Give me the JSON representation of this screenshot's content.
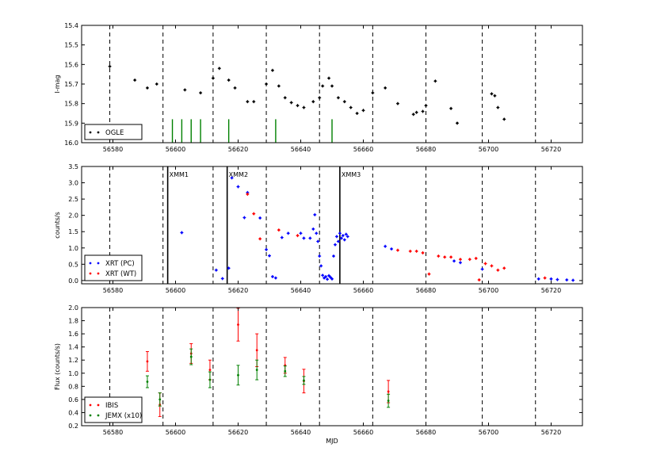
{
  "chart_data": [
    {
      "type": "scatter",
      "id": "ogle",
      "ylabel": "I-mag",
      "xlim": [
        56570,
        56730
      ],
      "ylim": [
        15.4,
        16.0
      ],
      "y_inverted": true,
      "yticks": [
        15.4,
        15.5,
        15.6,
        15.7,
        15.8,
        15.9,
        16.0
      ],
      "ytick_labels": [
        "15.4",
        "15.5",
        "15.6",
        "15.7",
        "15.8",
        "15.9",
        "16.0"
      ],
      "xticks": [
        56580,
        56600,
        56620,
        56640,
        56660,
        56680,
        56700,
        56720
      ],
      "xtick_labels": [
        "56580",
        "56600",
        "56620",
        "56640",
        "56660",
        "56680",
        "56700",
        "56720"
      ],
      "dashed_lines_x": [
        56579,
        56596,
        56612,
        56629,
        56646,
        56663,
        56680,
        56698,
        56715
      ],
      "legend": {
        "position": "lower-left",
        "entries": [
          {
            "label": "OGLE",
            "color": "#000000"
          }
        ]
      },
      "green_bars": {
        "color": "#008000",
        "y_from": 15.88,
        "x": [
          56599,
          56602,
          56605,
          56608,
          56617,
          56632,
          56650
        ]
      },
      "series": [
        {
          "name": "OGLE",
          "color": "#000000",
          "points": [
            [
              56579,
              15.61
            ],
            [
              56587,
              15.68
            ],
            [
              56591,
              15.72
            ],
            [
              56594,
              15.7
            ],
            [
              56603,
              15.73
            ],
            [
              56608,
              15.745
            ],
            [
              56612,
              15.67
            ],
            [
              56614,
              15.62
            ],
            [
              56617,
              15.68
            ],
            [
              56619,
              15.72
            ],
            [
              56623,
              15.79
            ],
            [
              56625,
              15.79
            ],
            [
              56629,
              15.7
            ],
            [
              56631,
              15.63
            ],
            [
              56633,
              15.71
            ],
            [
              56635,
              15.77
            ],
            [
              56637,
              15.795
            ],
            [
              56639,
              15.81
            ],
            [
              56641,
              15.82
            ],
            [
              56644,
              15.79
            ],
            [
              56646,
              15.77
            ],
            [
              56647,
              15.71
            ],
            [
              56649,
              15.67
            ],
            [
              56650,
              15.71
            ],
            [
              56652,
              15.77
            ],
            [
              56654,
              15.79
            ],
            [
              56656,
              15.82
            ],
            [
              56658,
              15.85
            ],
            [
              56660,
              15.835
            ],
            [
              56663,
              15.745
            ],
            [
              56667,
              15.72
            ],
            [
              56671,
              15.8
            ],
            [
              56676,
              15.855
            ],
            [
              56677,
              15.845
            ],
            [
              56679,
              15.84
            ],
            [
              56680,
              15.81
            ],
            [
              56683,
              15.685
            ],
            [
              56688,
              15.825
            ],
            [
              56690,
              15.9
            ],
            [
              56701,
              15.75
            ],
            [
              56702,
              15.76
            ],
            [
              56703,
              15.82
            ],
            [
              56705,
              15.88
            ]
          ]
        }
      ]
    },
    {
      "type": "scatter",
      "id": "xrt",
      "ylabel": "counts/s",
      "xlim": [
        56570,
        56730
      ],
      "ylim": [
        -0.1,
        3.5
      ],
      "yticks": [
        0.0,
        0.5,
        1.0,
        1.5,
        2.0,
        2.5,
        3.0,
        3.5
      ],
      "ytick_labels": [
        "0.0",
        "0.5",
        "1.0",
        "1.5",
        "2.0",
        "2.5",
        "3.0",
        "3.5"
      ],
      "xticks": [
        56580,
        56600,
        56620,
        56640,
        56660,
        56680,
        56700,
        56720
      ],
      "xtick_labels": [
        "56580",
        "56600",
        "56620",
        "56640",
        "56660",
        "56680",
        "56700",
        "56720"
      ],
      "dashed_lines_x": [
        56579,
        56596,
        56612,
        56629,
        56646,
        56663,
        56680,
        56698,
        56715
      ],
      "solid_lines": [
        {
          "x": 56597.5,
          "label": "XMM1"
        },
        {
          "x": 56616.5,
          "label": "XMM2"
        },
        {
          "x": 56652.5,
          "label": "XMM3"
        }
      ],
      "legend": {
        "position": "lower-left",
        "entries": [
          {
            "label": "XRT (PC)",
            "color": "#0000ff"
          },
          {
            "label": "XRT (WT)",
            "color": "#ff0000"
          }
        ]
      },
      "series": [
        {
          "name": "XRT (PC)",
          "color": "#0000ff",
          "points": [
            [
              56602,
              1.47
            ],
            [
              56613,
              0.32
            ],
            [
              56615,
              0.06
            ],
            [
              56617,
              0.38
            ],
            [
              56618,
              3.15
            ],
            [
              56620,
              2.88
            ],
            [
              56622,
              1.93
            ],
            [
              56623,
              2.7
            ],
            [
              56627,
              1.92
            ],
            [
              56629,
              0.95
            ],
            [
              56630,
              0.76
            ],
            [
              56631,
              0.12
            ],
            [
              56632,
              0.08
            ],
            [
              56634,
              1.32
            ],
            [
              56636,
              1.45
            ],
            [
              56640,
              1.45
            ],
            [
              56641,
              1.3
            ],
            [
              56643,
              1.3
            ],
            [
              56644,
              1.58
            ],
            [
              56644.5,
              2.02
            ],
            [
              56645,
              1.45
            ],
            [
              56645.5,
              1.2
            ],
            [
              56646,
              0.75
            ],
            [
              56646.5,
              0.45
            ],
            [
              56647,
              0.16
            ],
            [
              56647.5,
              0.08
            ],
            [
              56648,
              0.12
            ],
            [
              56648.5,
              0.04
            ],
            [
              56649,
              0.15
            ],
            [
              56649.5,
              0.1
            ],
            [
              56650,
              0.05
            ],
            [
              56650.5,
              0.75
            ],
            [
              56651,
              1.1
            ],
            [
              56651.5,
              1.35
            ],
            [
              56652,
              1.2
            ],
            [
              56652.5,
              1.45
            ],
            [
              56653,
              1.3
            ],
            [
              56653.5,
              1.38
            ],
            [
              56654,
              1.25
            ],
            [
              56654.5,
              1.42
            ],
            [
              56655,
              1.35
            ],
            [
              56667,
              1.05
            ],
            [
              56669,
              0.97
            ],
            [
              56689,
              0.6
            ],
            [
              56691,
              0.55
            ],
            [
              56698,
              0.35
            ],
            [
              56716,
              0.05
            ],
            [
              56720,
              0.05
            ],
            [
              56722,
              0.03
            ],
            [
              56725,
              0.02
            ],
            [
              56727,
              0.01
            ]
          ]
        },
        {
          "name": "XRT (WT)",
          "color": "#ff0000",
          "points": [
            [
              56623,
              2.65
            ],
            [
              56625,
              2.05
            ],
            [
              56627,
              1.28
            ],
            [
              56633,
              1.55
            ],
            [
              56639,
              1.38
            ],
            [
              56671,
              0.93
            ],
            [
              56675,
              0.9
            ],
            [
              56677,
              0.9
            ],
            [
              56679,
              0.85
            ],
            [
              56681,
              0.2
            ],
            [
              56684,
              0.75
            ],
            [
              56686,
              0.72
            ],
            [
              56688,
              0.72
            ],
            [
              56691,
              0.65
            ],
            [
              56694,
              0.65
            ],
            [
              56696,
              0.68
            ],
            [
              56697,
              0.02
            ],
            [
              56699,
              0.52
            ],
            [
              56701,
              0.45
            ],
            [
              56703,
              0.32
            ],
            [
              56705,
              0.38
            ],
            [
              56718,
              0.08
            ]
          ]
        }
      ]
    },
    {
      "type": "scatter",
      "id": "integral",
      "xlabel": "MJD",
      "ylabel": "Flux (counts/s)",
      "xlim": [
        56570,
        56730
      ],
      "ylim": [
        0.2,
        2.0
      ],
      "yticks": [
        0.2,
        0.4,
        0.6,
        0.8,
        1.0,
        1.2,
        1.4,
        1.6,
        1.8,
        2.0
      ],
      "ytick_labels": [
        "0.2",
        "0.4",
        "0.6",
        "0.8",
        "1.0",
        "1.2",
        "1.4",
        "1.6",
        "1.8",
        "2.0"
      ],
      "xticks": [
        56580,
        56600,
        56620,
        56640,
        56660,
        56680,
        56700,
        56720
      ],
      "xtick_labels": [
        "56580",
        "56600",
        "56620",
        "56640",
        "56660",
        "56680",
        "56700",
        "56720"
      ],
      "dashed_lines_x": [
        56579,
        56596,
        56612,
        56629,
        56646,
        56663,
        56680,
        56698,
        56715
      ],
      "legend": {
        "position": "lower-left",
        "entries": [
          {
            "label": "IBIS",
            "color": "#ff0000"
          },
          {
            "label": "JEMX (x10)",
            "color": "#008000"
          }
        ]
      },
      "series": [
        {
          "name": "IBIS",
          "color": "#ff0000",
          "points": [
            [
              56591,
              1.18,
              0.15
            ],
            [
              56595,
              0.52,
              0.18
            ],
            [
              56605,
              1.3,
              0.15
            ],
            [
              56611,
              1.05,
              0.15
            ],
            [
              56620,
              1.74,
              0.25
            ],
            [
              56626,
              1.35,
              0.25
            ],
            [
              56635,
              1.12,
              0.12
            ],
            [
              56641,
              0.88,
              0.18
            ],
            [
              56668,
              0.72,
              0.17
            ]
          ]
        },
        {
          "name": "JEMX (x10)",
          "color": "#008000",
          "points": [
            [
              56591,
              0.87,
              0.09
            ],
            [
              56595,
              0.6,
              0.1
            ],
            [
              56605,
              1.25,
              0.12
            ],
            [
              56611,
              0.9,
              0.12
            ],
            [
              56620,
              0.97,
              0.15
            ],
            [
              56626,
              1.05,
              0.15
            ],
            [
              56635,
              1.03,
              0.08
            ],
            [
              56641,
              0.89,
              0.06
            ],
            [
              56668,
              0.58,
              0.1
            ]
          ]
        }
      ]
    }
  ]
}
